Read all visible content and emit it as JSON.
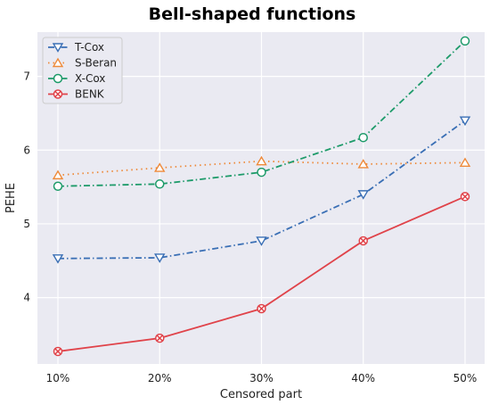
{
  "chart_data": {
    "type": "line",
    "title": "Bell-shaped functions",
    "xlabel": "Censored part",
    "ylabel": "PEHE",
    "categories": [
      "10%",
      "20%",
      "30%",
      "40%",
      "50%"
    ],
    "ylim": [
      3.1,
      7.6
    ],
    "yticks": [
      4,
      5,
      6,
      7
    ],
    "grid": true,
    "legend_position": "top-left",
    "series": [
      {
        "name": "T-Cox",
        "values": [
          4.53,
          4.54,
          4.77,
          5.4,
          6.4
        ],
        "color": "#3a6fb5",
        "marker": "triangle-down",
        "dash": "dashdot"
      },
      {
        "name": "S-Beran",
        "values": [
          5.66,
          5.76,
          5.85,
          5.81,
          5.83
        ],
        "color": "#ee8a3a",
        "marker": "triangle-up",
        "dash": "dotted"
      },
      {
        "name": "X-Cox",
        "values": [
          5.51,
          5.54,
          5.7,
          6.17,
          7.48
        ],
        "color": "#1e9b6a",
        "marker": "circle",
        "dash": "dashdot"
      },
      {
        "name": "BENK",
        "values": [
          3.27,
          3.45,
          3.85,
          4.77,
          5.37
        ],
        "color": "#e0434a",
        "marker": "x-circle",
        "dash": "solid"
      }
    ]
  }
}
